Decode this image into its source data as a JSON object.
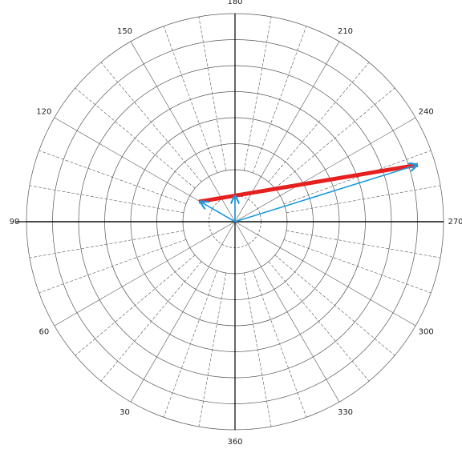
{
  "angle_labels": [
    "180",
    "210",
    "240",
    "270",
    "300",
    "330",
    "360",
    "30",
    "60",
    "90",
    "120",
    "150"
  ]
}
